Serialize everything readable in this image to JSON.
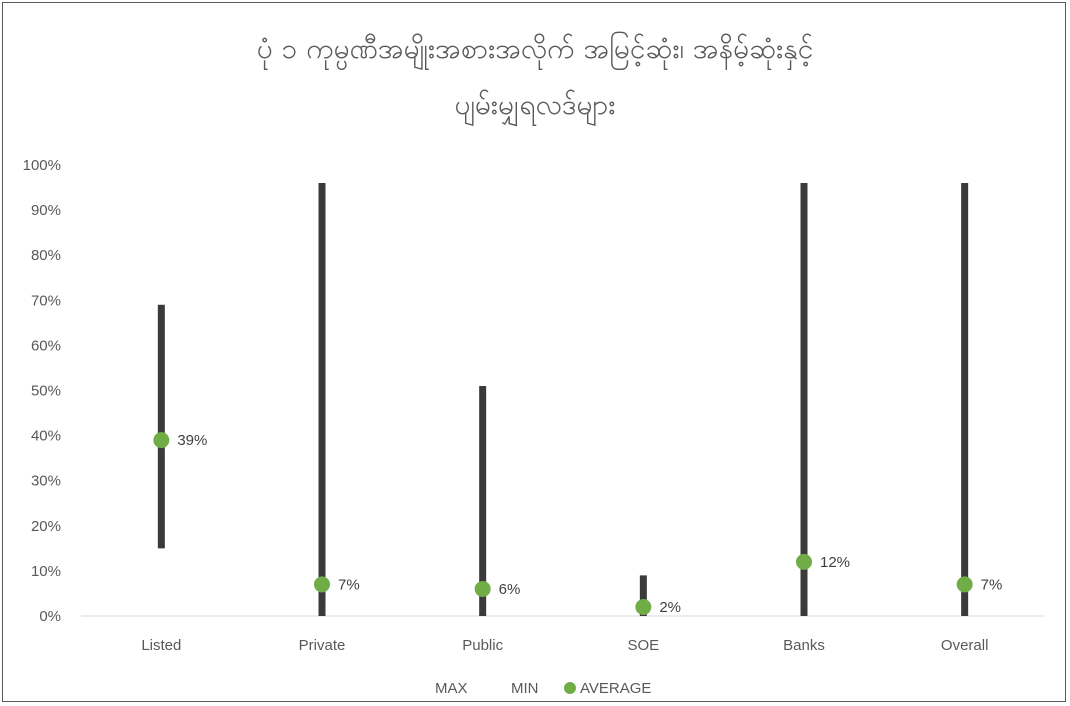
{
  "chart_data": {
    "type": "high-low-average",
    "title_lines": [
      "ပုံ ၁ ကုမ္ပဏီအမျိုးအစားအလိုက် အမြင့်ဆုံး၊ အနိမ့်ဆုံးနှင့်",
      "ပျမ်းမျှရလဒ်များ"
    ],
    "categories": [
      "Listed",
      "Private",
      "Public",
      "SOE",
      "Banks",
      "Overall"
    ],
    "series": [
      {
        "name": "MAX",
        "values": [
          69,
          96,
          51,
          9,
          96,
          96
        ],
        "color": "#3a3a3a"
      },
      {
        "name": "MIN",
        "values": [
          15,
          0,
          0,
          0,
          0,
          0
        ],
        "color": "#3a3a3a"
      },
      {
        "name": "AVERAGE",
        "values": [
          39,
          7,
          6,
          2,
          12,
          7
        ],
        "color": "#70ad47"
      }
    ],
    "average_labels": [
      "39%",
      "7%",
      "6%",
      "2%",
      "12%",
      "7%"
    ],
    "y_ticks": [
      "0%",
      "10%",
      "20%",
      "30%",
      "40%",
      "50%",
      "60%",
      "70%",
      "80%",
      "90%",
      "100%"
    ],
    "ylim": [
      0,
      100
    ],
    "legend_position": "bottom",
    "grid": false
  }
}
